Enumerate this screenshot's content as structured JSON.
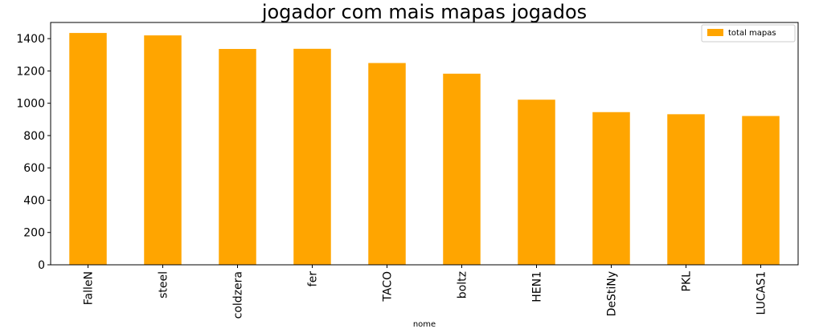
{
  "chart_data": {
    "type": "bar",
    "title": "jogador com mais mapas jogados",
    "xlabel": "nome",
    "ylabel": "",
    "categories": [
      "FalleN",
      "steel",
      "coldzera",
      "fer",
      "TACO",
      "boltz",
      "HEN1",
      "DeStiNy",
      "PKL",
      "LUCAS1"
    ],
    "series": [
      {
        "name": "total mapas",
        "color": "#FFA500",
        "values": [
          1435,
          1420,
          1336,
          1337,
          1249,
          1183,
          1022,
          945,
          932,
          921
        ]
      }
    ],
    "ylim": [
      0,
      1500
    ],
    "yticks": [
      0,
      200,
      400,
      600,
      800,
      1000,
      1200,
      1400
    ],
    "grid": false,
    "legend_position": "top-right"
  }
}
